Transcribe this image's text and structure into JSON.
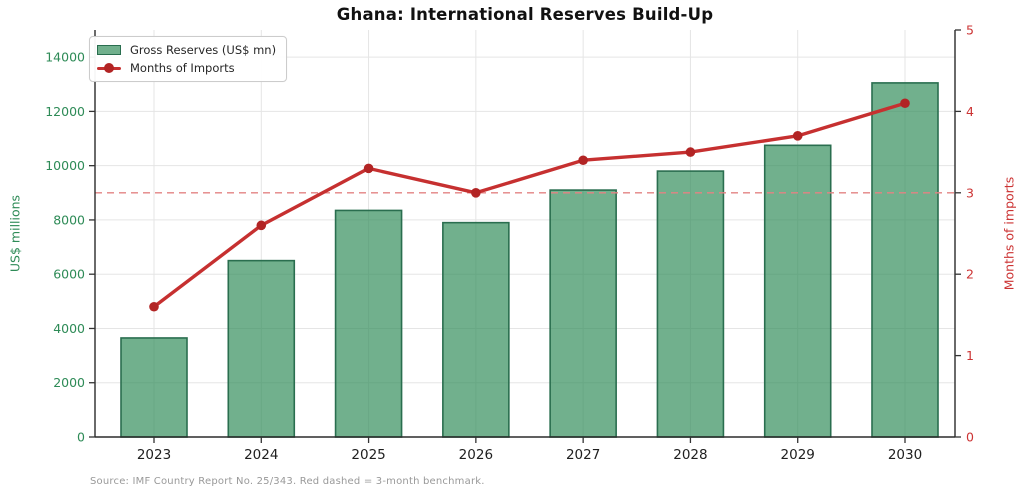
{
  "title": "Ghana: International Reserves Build-Up",
  "source_note": "Source: IMF Country Report No. 25/343. Red dashed = 3-month benchmark.",
  "left_axis": {
    "label": "US$ millions",
    "ticks": [
      0,
      2000,
      4000,
      6000,
      8000,
      10000,
      12000,
      14000
    ],
    "range": [
      0,
      15000
    ],
    "color": "#2e8b57"
  },
  "right_axis": {
    "label": "Months of imports",
    "ticks": [
      0,
      1,
      2,
      3,
      4,
      5
    ],
    "range": [
      0,
      5
    ],
    "color": "#cc3333"
  },
  "legend": {
    "position": "upper-left",
    "items": [
      "Gross Reserves (US$ mn)",
      "Months of Imports"
    ]
  },
  "chart_data": {
    "type": "bar",
    "categories": [
      "2023",
      "2024",
      "2025",
      "2026",
      "2027",
      "2028",
      "2029",
      "2030"
    ],
    "series": [
      {
        "name": "Gross Reserves (US$ mn)",
        "type": "bar",
        "axis": "left",
        "values": [
          3650,
          6500,
          8350,
          7900,
          9100,
          9800,
          10750,
          13050
        ]
      },
      {
        "name": "Months of Imports",
        "type": "line",
        "axis": "right",
        "values": [
          1.6,
          2.6,
          3.3,
          3.0,
          3.4,
          3.5,
          3.7,
          4.1
        ]
      }
    ],
    "benchmark_line": {
      "axis": "right",
      "value": 3,
      "style": "dashed",
      "meaning": "3-month import cover benchmark"
    },
    "grid": true,
    "title": "Ghana: International Reserves Build-Up",
    "xlabel": "",
    "ylabel": "US$ millions",
    "ylabel_right": "Months of imports"
  },
  "colors": {
    "bar_fill": "#2e8b57",
    "bar_fill_opacity": 0.68,
    "bar_edge": "#2a6e4f",
    "line": "#c63030",
    "marker": "#b22424",
    "benchmark": "#e38383",
    "grid": "#e5e5e5",
    "spine": "#2b2b2b",
    "tick": "#333333",
    "x_tick_label": "#1f1f1f",
    "left_text": "#2e8b57",
    "right_text": "#cc3333"
  }
}
